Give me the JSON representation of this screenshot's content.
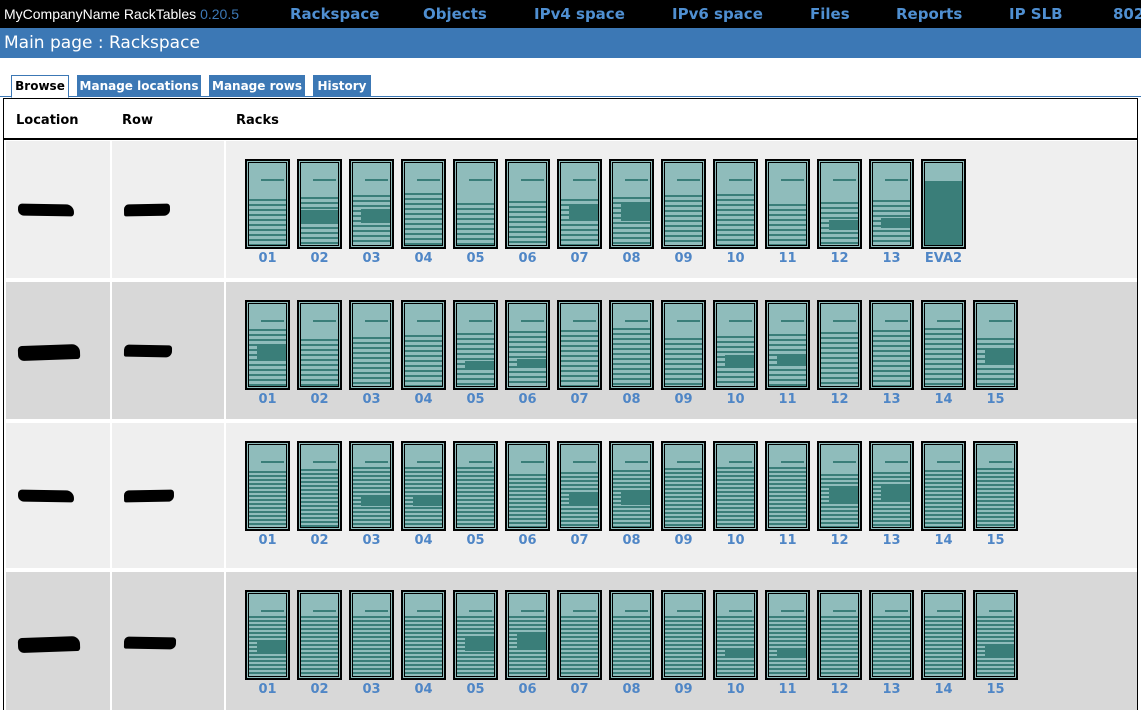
{
  "header": {
    "brand": "MyCompanyName RackTables",
    "version": "0.20.5",
    "nav": [
      "Rackspace",
      "Objects",
      "IPv4 space",
      "IPv6 space",
      "Files",
      "Reports",
      "IP SLB",
      "802"
    ]
  },
  "page_title": "Main page : Rackspace",
  "tabs": [
    "Browse",
    "Manage locations",
    "Manage rows",
    "History"
  ],
  "active_tab": "Browse",
  "table": {
    "headers": {
      "location": "Location",
      "row": "Row",
      "racks": "Racks"
    },
    "rows": [
      {
        "racks": [
          "01",
          "02",
          "03",
          "04",
          "05",
          "06",
          "07",
          "08",
          "09",
          "10",
          "11",
          "12",
          "13",
          "EVA2"
        ]
      },
      {
        "racks": [
          "01",
          "02",
          "03",
          "04",
          "05",
          "06",
          "07",
          "08",
          "09",
          "10",
          "11",
          "12",
          "13",
          "14",
          "15"
        ]
      },
      {
        "racks": [
          "01",
          "02",
          "03",
          "04",
          "05",
          "06",
          "07",
          "08",
          "09",
          "10",
          "11",
          "12",
          "13",
          "14",
          "15"
        ]
      },
      {
        "racks": [
          "01",
          "02",
          "03",
          "04",
          "05",
          "06",
          "07",
          "08",
          "09",
          "10",
          "11",
          "12",
          "13",
          "14",
          "15"
        ]
      }
    ]
  },
  "colors": {
    "accent": "#3c78b5",
    "rack_fill": "#8fbcbb",
    "rack_used": "#3a7e79",
    "rack_label": "#4f86c6"
  }
}
